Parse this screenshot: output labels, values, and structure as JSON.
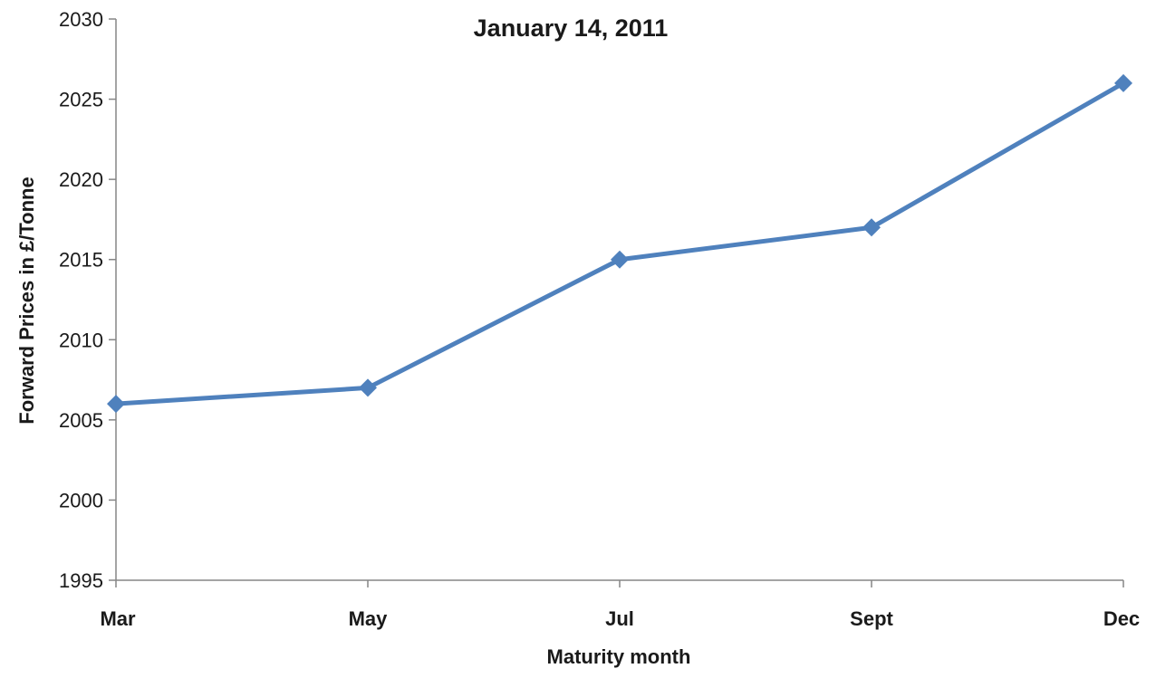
{
  "chart_data": {
    "type": "line",
    "title": "January 14, 2011",
    "xlabel": "Maturity month",
    "ylabel": "Forward Prices in £/Tonne",
    "categories": [
      "Mar",
      "May",
      "Jul",
      "Sept",
      "Dec"
    ],
    "series": [
      {
        "values": [
          2006,
          2007,
          2015,
          2017,
          2026
        ],
        "color": "#4f81bd",
        "marker": "diamond"
      }
    ],
    "ylim": [
      1995,
      2030
    ],
    "yticks": [
      1995,
      2000,
      2005,
      2010,
      2015,
      2020,
      2025,
      2030
    ],
    "grid": false,
    "legend": "none"
  }
}
